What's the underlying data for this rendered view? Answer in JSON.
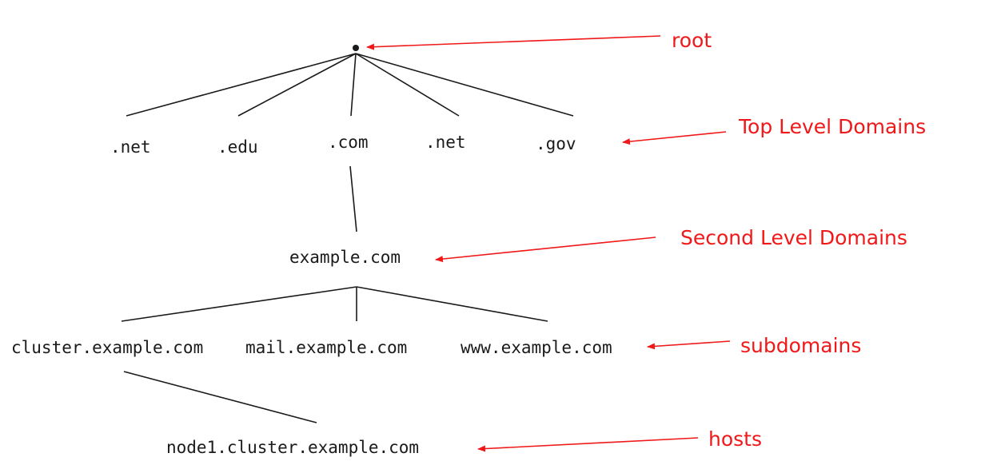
{
  "colors": {
    "tree": "#1a1a1a",
    "annotation": "#f01818"
  },
  "nodes": {
    "tld_net_1": ".net",
    "tld_edu": ".edu",
    "tld_com": ".com",
    "tld_net_2": ".net",
    "tld_gov": ".gov",
    "second_level": "example.com",
    "sub_cluster": "cluster.example.com",
    "sub_mail": "mail.example.com",
    "sub_www": "www.example.com",
    "host_node1": "node1.cluster.example.com"
  },
  "labels": {
    "root": "root",
    "tld": "Top Level Domains",
    "second_level": "Second Level Domains",
    "subdomains": "subdomains",
    "hosts": "hosts"
  }
}
